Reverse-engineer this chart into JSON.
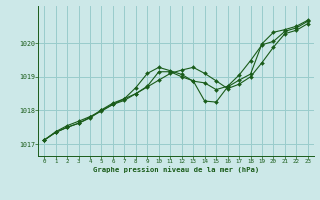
{
  "xlabel": "Graphe pression niveau de la mer (hPa)",
  "background_color": "#cce8e8",
  "grid_color": "#99cccc",
  "line_color": "#1a5c1a",
  "marker_color": "#1a5c1a",
  "x_min": -0.5,
  "x_max": 23.5,
  "y_min": 1016.65,
  "y_max": 1021.1,
  "yticks": [
    1017,
    1018,
    1019,
    1020
  ],
  "xticks": [
    0,
    1,
    2,
    3,
    4,
    5,
    6,
    7,
    8,
    9,
    10,
    11,
    12,
    13,
    14,
    15,
    16,
    17,
    18,
    19,
    20,
    21,
    22,
    23
  ],
  "series1": [
    1017.12,
    1017.37,
    1017.55,
    1017.68,
    1017.82,
    1017.98,
    1018.18,
    1018.35,
    1018.68,
    1019.1,
    1019.28,
    1019.18,
    1019.07,
    1018.87,
    1018.82,
    1018.62,
    1018.72,
    1019.05,
    1019.48,
    1019.95,
    1020.05,
    1020.35,
    1020.45,
    1020.65
  ],
  "series2": [
    1017.12,
    1017.35,
    1017.5,
    1017.62,
    1017.78,
    1018.0,
    1018.18,
    1018.3,
    1018.5,
    1018.7,
    1018.9,
    1019.1,
    1019.2,
    1019.28,
    1019.1,
    1018.88,
    1018.65,
    1018.78,
    1019.0,
    1019.42,
    1019.88,
    1020.28,
    1020.38,
    1020.58
  ],
  "series3": [
    1017.12,
    1017.35,
    1017.5,
    1017.62,
    1017.8,
    1018.02,
    1018.22,
    1018.35,
    1018.5,
    1018.72,
    1019.15,
    1019.15,
    1019.0,
    1018.88,
    1018.28,
    1018.25,
    1018.7,
    1018.9,
    1019.08,
    1019.98,
    1020.32,
    1020.4,
    1020.5,
    1020.68
  ]
}
